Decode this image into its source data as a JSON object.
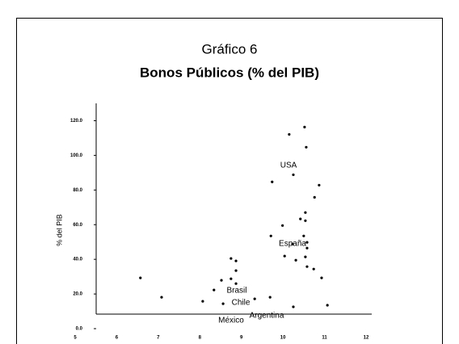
{
  "chart_data": {
    "type": "scatter",
    "title": "Gráfico 6",
    "subtitle": "Bonos Públicos  (% del PIB)",
    "y_label": "% del PIB",
    "annotations": [
      "USA",
      "España",
      "Brasil",
      "Chile",
      "México",
      "Argentina"
    ],
    "color": "#000000",
    "x": [
      6.57,
      7.08,
      8.07,
      8.34,
      8.52,
      8.56,
      8.75,
      8.75,
      8.87,
      8.87,
      8.87,
      9.32,
      9.69,
      9.71,
      9.74,
      9.99,
      10.04,
      10.15,
      10.23,
      10.25,
      10.25,
      10.31,
      10.42,
      10.5,
      10.52,
      10.54,
      10.54,
      10.54,
      10.56,
      10.58,
      10.58,
      10.58,
      10.74,
      10.76,
      10.87,
      10.93,
      11.07
    ],
    "values": [
      29.3,
      18.1,
      15.8,
      22.3,
      27.9,
      14.4,
      40.5,
      28.8,
      39.1,
      33.5,
      26.0,
      17.2,
      18.1,
      53.5,
      84.7,
      59.5,
      41.9,
      112.1,
      48.8,
      12.6,
      88.8,
      39.5,
      63.3,
      53.5,
      116.3,
      67.0,
      62.3,
      41.4,
      104.7,
      49.8,
      46.5,
      35.8,
      34.4,
      75.8,
      82.8,
      29.3,
      13.5
    ],
    "xlim": [
      5,
      12
    ],
    "xticks": [
      5,
      6,
      7,
      8,
      9,
      10,
      11,
      12
    ],
    "ylim": [
      0,
      130
    ],
    "yticks": [
      {
        "value": 0,
        "label": "0.0"
      },
      {
        "value": 20,
        "label": "20.0"
      },
      {
        "value": 40,
        "label": "40.0"
      },
      {
        "value": 60,
        "label": "60.0"
      },
      {
        "value": 80,
        "label": "80.0"
      },
      {
        "value": 100,
        "label": "100.0"
      },
      {
        "value": 120,
        "label": "120.0"
      }
    ]
  }
}
